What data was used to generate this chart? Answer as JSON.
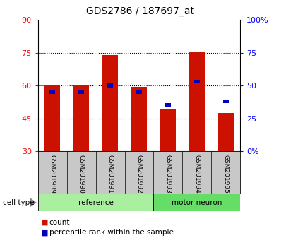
{
  "title": "GDS2786 / 187697_at",
  "categories": [
    "GSM201989",
    "GSM201990",
    "GSM201991",
    "GSM201992",
    "GSM201993",
    "GSM201994",
    "GSM201995"
  ],
  "red_values": [
    60.5,
    60.5,
    74.0,
    59.5,
    49.5,
    75.5,
    47.5
  ],
  "blue_pct": [
    45,
    45,
    50,
    45,
    35,
    53,
    38
  ],
  "ref_count": 4,
  "neuron_count": 3,
  "ref_color": "#AAEEA0",
  "neuron_color": "#66DD66",
  "ylim_left": [
    30,
    90
  ],
  "ylim_right": [
    0,
    100
  ],
  "yticks_left": [
    30,
    45,
    60,
    75,
    90
  ],
  "ytick_labels_right": [
    "0%",
    "25",
    "50",
    "75",
    "100%"
  ],
  "red_color": "#CC1100",
  "blue_color": "#0000BB",
  "bg_gray": "#C8C8C8"
}
